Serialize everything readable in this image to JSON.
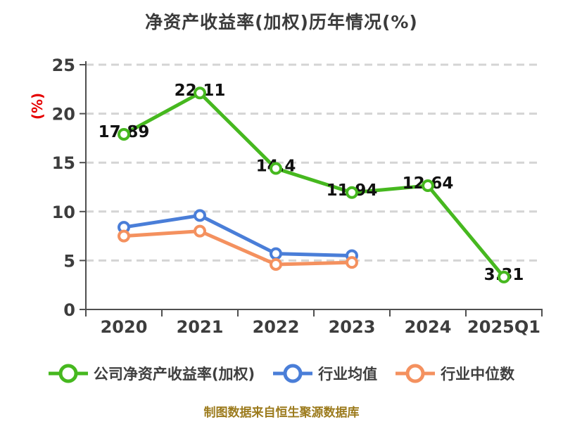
{
  "title": "净资产收益率(加权)历年情况(%)",
  "caption": "制图数据来自恒生聚源数据库",
  "colors": {
    "title_text": "#3b3b3b",
    "axis": "#4f4f4f",
    "tick_text": "#3d3d3d",
    "gridline": "#d4d4d4",
    "ylabel_red": "#e60000",
    "caption_gold": "#9c7b1d",
    "data_label": "#111111",
    "company_green": "#46b81f",
    "industry_avg_blue": "#4a7ed8",
    "industry_median_orange": "#f4915f"
  },
  "chart_data": {
    "type": "line",
    "title": "净资产收益率(加权)历年情况(%)",
    "ylabel": "(%)",
    "xlabel": "",
    "ylim": [
      0,
      25
    ],
    "yticks": [
      0,
      5,
      10,
      15,
      20,
      25
    ],
    "categories": [
      "2020",
      "2021",
      "2022",
      "2023",
      "2024",
      "2025Q1"
    ],
    "grid": "horizontal-dashed",
    "legend_position": "bottom",
    "series": [
      {
        "name": "公司净资产收益率(加权)",
        "color": "#46b81f",
        "values": [
          17.89,
          22.11,
          14.4,
          11.94,
          12.64,
          3.31
        ],
        "data_labels": [
          "17.89",
          "22.11",
          "14.4",
          "11.94",
          "12.64",
          "3.31"
        ]
      },
      {
        "name": "行业均值",
        "color": "#4a7ed8",
        "values": [
          8.4,
          9.6,
          5.7,
          5.5
        ],
        "data_labels": []
      },
      {
        "name": "行业中位数",
        "color": "#f4915f",
        "values": [
          7.5,
          8.0,
          4.6,
          4.8
        ],
        "data_labels": []
      }
    ]
  },
  "legend": {
    "items": [
      {
        "label": "公司净资产收益率(加权)",
        "color": "#46b81f"
      },
      {
        "label": "行业均值",
        "color": "#4a7ed8"
      },
      {
        "label": "行业中位数",
        "color": "#f4915f"
      }
    ]
  }
}
